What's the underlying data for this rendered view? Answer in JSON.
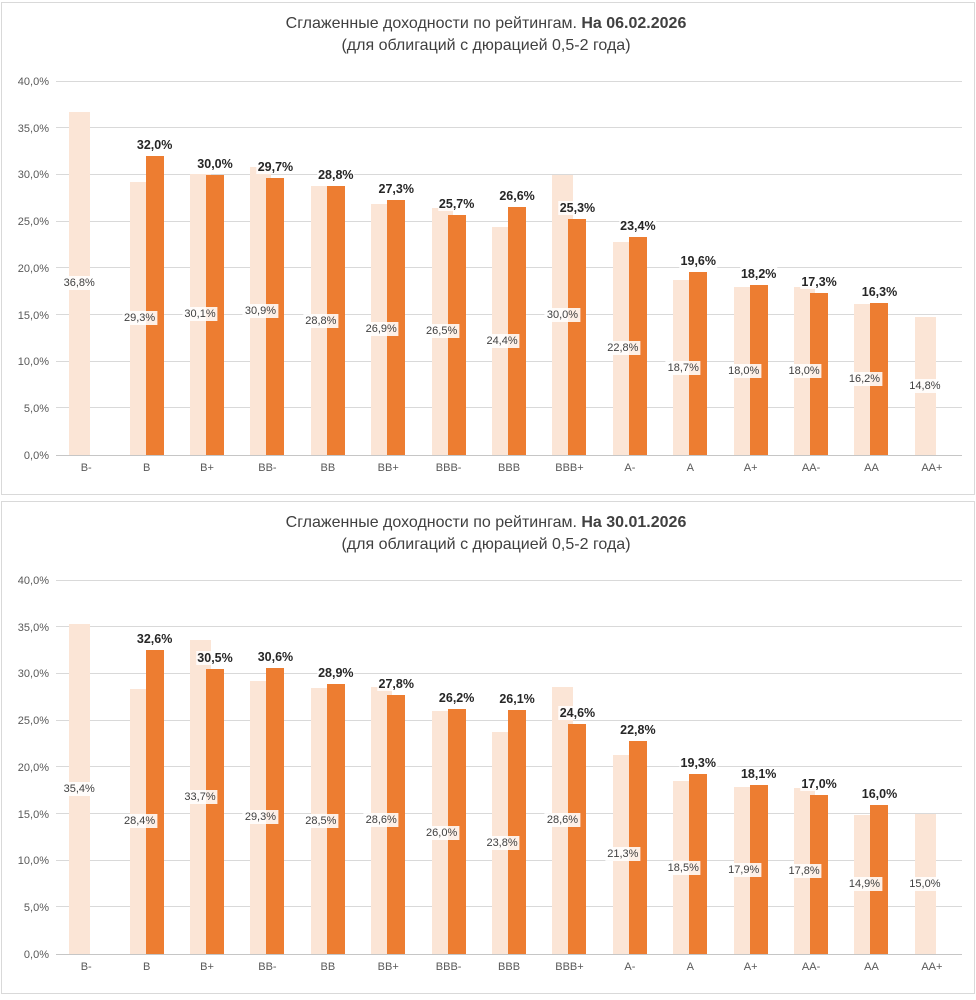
{
  "chart_data": [
    {
      "type": "bar",
      "title": "Сглаженные доходности по рейтингам.",
      "title_bold": "На 06.02.2026",
      "subtitle": "(для облигаций с дюрацией 0,5-2 года)",
      "categories": [
        "B-",
        "B",
        "B+",
        "BB-",
        "BB",
        "BB+",
        "BBB-",
        "BBB",
        "BBB+",
        "A-",
        "A",
        "A+",
        "AA-",
        "AA",
        "AA+"
      ],
      "series": [
        {
          "name": "previous",
          "color": "#fbe5d6",
          "values": [
            36.8,
            29.3,
            30.1,
            30.9,
            28.8,
            26.9,
            26.5,
            24.4,
            30.0,
            22.8,
            18.7,
            18.0,
            18.0,
            16.2,
            14.8
          ]
        },
        {
          "name": "current",
          "color": "#ed7d31",
          "values": [
            null,
            32.0,
            30.0,
            29.7,
            28.8,
            27.3,
            25.7,
            26.6,
            25.3,
            23.4,
            19.6,
            18.2,
            17.3,
            16.3,
            null
          ]
        }
      ],
      "ylim": [
        0,
        40
      ],
      "ytick_step": 5,
      "grid": true,
      "legend": "none",
      "value_suffix": "%",
      "decimal_separator": ","
    },
    {
      "type": "bar",
      "title": "Сглаженные доходности по рейтингам.",
      "title_bold": "На 30.01.2026",
      "subtitle": "(для облигаций с дюрацией 0,5-2 года)",
      "categories": [
        "B-",
        "B",
        "B+",
        "BB-",
        "BB",
        "BB+",
        "BBB-",
        "BBB",
        "BBB+",
        "A-",
        "A",
        "A+",
        "AA-",
        "AA",
        "AA+"
      ],
      "series": [
        {
          "name": "previous",
          "color": "#fbe5d6",
          "values": [
            35.4,
            28.4,
            33.7,
            29.3,
            28.5,
            28.6,
            26.0,
            23.8,
            28.6,
            21.3,
            18.5,
            17.9,
            17.8,
            14.9,
            15.0
          ]
        },
        {
          "name": "current",
          "color": "#ed7d31",
          "values": [
            null,
            32.6,
            30.5,
            30.6,
            28.9,
            27.8,
            26.2,
            26.1,
            24.6,
            22.8,
            19.3,
            18.1,
            17.0,
            16.0,
            null
          ]
        }
      ],
      "ylim": [
        0,
        40
      ],
      "ytick_step": 5,
      "grid": true,
      "legend": "none",
      "value_suffix": "%",
      "decimal_separator": ","
    }
  ]
}
